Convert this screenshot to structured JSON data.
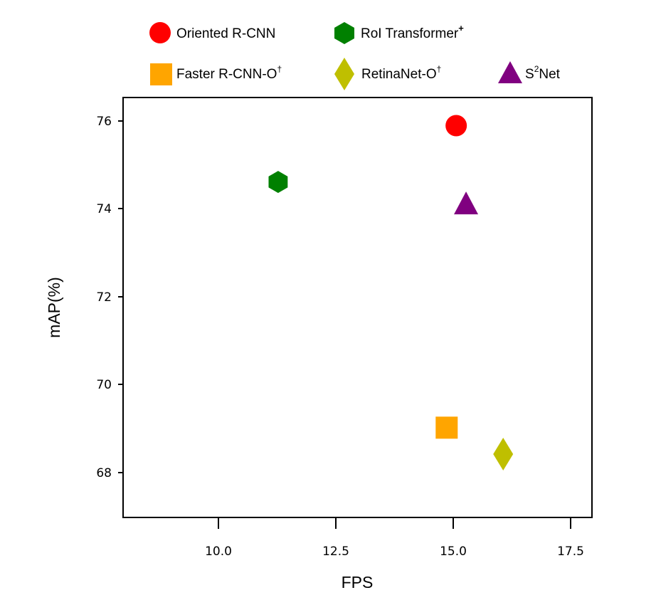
{
  "chart_data": {
    "type": "scatter",
    "title": "",
    "xlabel": "FPS",
    "ylabel": "mAP(%)",
    "xlim": [
      7.97,
      17.95
    ],
    "ylim": [
      66.98,
      76.53
    ],
    "xticks": [
      10.0,
      12.5,
      15.0,
      17.5
    ],
    "xtick_labels": [
      "10.0",
      "12.5",
      "15.0",
      "17.5"
    ],
    "yticks": [
      68,
      70,
      72,
      74,
      76
    ],
    "ytick_labels": [
      "68",
      "70",
      "72",
      "74",
      "76"
    ],
    "grid": false,
    "legend_position": "top (above plot, 2 rows)",
    "series": [
      {
        "name": "Oriented R-CNN",
        "label_base": "Oriented R-CNN",
        "label_sup": "",
        "marker": "circle",
        "color": "#ff0000",
        "x": 15.06,
        "y": 75.89
      },
      {
        "name": "RoI Transformer+",
        "label_base": "RoI Transformer",
        "label_sup": "+",
        "marker": "hexagon",
        "color": "#008000",
        "x": 11.27,
        "y": 74.61
      },
      {
        "name": "Faster R-CNN-O†",
        "label_base": "Faster R-CNN-O",
        "label_sup": "†",
        "marker": "square",
        "color": "#ffa500",
        "x": 14.85,
        "y": 69.03
      },
      {
        "name": "RetinaNet-O†",
        "label_base": "RetinaNet-O",
        "label_sup": "†",
        "marker": "diamond",
        "color": "#bfbf00",
        "x": 16.06,
        "y": 68.42
      },
      {
        "name": "S2Net",
        "label_base": "S",
        "label_sup": "2",
        "label_tail": "Net",
        "marker": "triangle",
        "color": "#800080",
        "x": 15.27,
        "y": 74.1
      }
    ]
  }
}
